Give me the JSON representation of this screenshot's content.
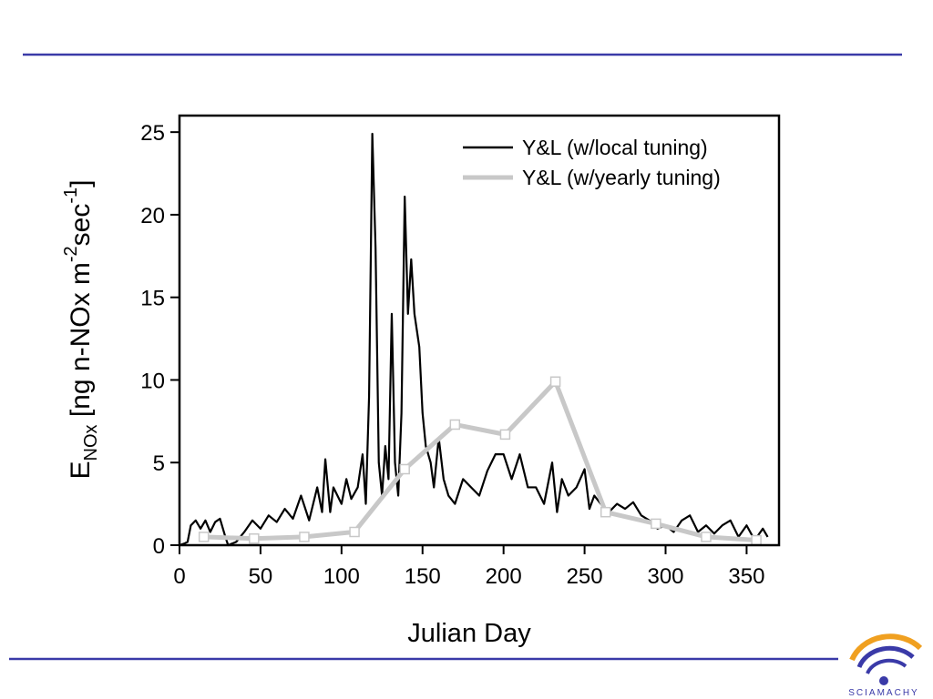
{
  "chart_data": {
    "type": "line",
    "xlabel": "Julian Day",
    "ylabel": [
      "E",
      "NOx",
      " [ng n-NOx m",
      "-2",
      "sec",
      "-1",
      "]"
    ],
    "xlim": [
      0,
      370
    ],
    "xticks": [
      0,
      50,
      100,
      150,
      200,
      250,
      300,
      350
    ],
    "ylim": [
      0,
      26
    ],
    "yticks": [
      0,
      5,
      10,
      15,
      20,
      25
    ],
    "legend": "upper right",
    "series": [
      {
        "name": "Y&L (w/local tuning)",
        "color": "#000000",
        "markers": false,
        "x": [
          0,
          3,
          5,
          7,
          10,
          13,
          16,
          19,
          22,
          25,
          28,
          30,
          35,
          40,
          45,
          50,
          55,
          60,
          65,
          70,
          75,
          80,
          85,
          88,
          90,
          93,
          95,
          100,
          103,
          106,
          110,
          113,
          115,
          117,
          119,
          121,
          123,
          125,
          127,
          129,
          131,
          133,
          135,
          137,
          139,
          141,
          143,
          145,
          148,
          150,
          152,
          155,
          157,
          160,
          163,
          166,
          170,
          175,
          180,
          185,
          190,
          195,
          200,
          205,
          210,
          215,
          220,
          225,
          230,
          233,
          236,
          240,
          245,
          250,
          253,
          256,
          260,
          265,
          270,
          275,
          280,
          285,
          290,
          295,
          300,
          305,
          310,
          315,
          320,
          325,
          330,
          335,
          340,
          345,
          350,
          355,
          360,
          363
        ],
        "values": [
          0,
          0.1,
          0.2,
          1.2,
          1.5,
          1.0,
          1.5,
          0.8,
          1.4,
          1.6,
          0.6,
          0,
          0.2,
          0.8,
          1.5,
          1.0,
          1.8,
          1.4,
          2.2,
          1.6,
          3.0,
          1.5,
          3.5,
          2.0,
          5.2,
          2.0,
          3.5,
          2.5,
          4.0,
          2.8,
          3.5,
          5.5,
          2.5,
          9,
          24.9,
          18,
          5,
          3,
          6,
          4,
          14,
          5,
          3,
          8,
          21.1,
          14,
          17.3,
          14,
          12,
          8,
          6,
          5,
          3.5,
          6.5,
          4,
          3,
          2.5,
          4,
          3.5,
          3,
          4.5,
          5.5,
          5.5,
          4,
          5.5,
          3.5,
          3.5,
          2.5,
          5,
          2,
          4,
          3,
          3.5,
          4.6,
          2.2,
          3,
          2.5,
          2.0,
          2.5,
          2.2,
          2.6,
          1.8,
          1.5,
          1,
          1.2,
          0.8,
          1.5,
          1.8,
          0.8,
          1.2,
          0.7,
          1.2,
          1.5,
          0.5,
          1.2,
          0.3,
          1.0,
          0.5
        ]
      },
      {
        "name": "Y&L (w/yearly tuning)",
        "color": "#c8c8c8",
        "markers": true,
        "x": [
          15,
          46,
          77,
          108,
          139,
          170,
          201,
          232,
          263,
          294,
          325,
          356
        ],
        "values": [
          0.5,
          0.4,
          0.5,
          0.8,
          4.6,
          7.3,
          6.7,
          9.9,
          2.0,
          1.3,
          0.5,
          0.3
        ]
      }
    ]
  },
  "logo": {
    "text": "SCIAMACHY"
  }
}
